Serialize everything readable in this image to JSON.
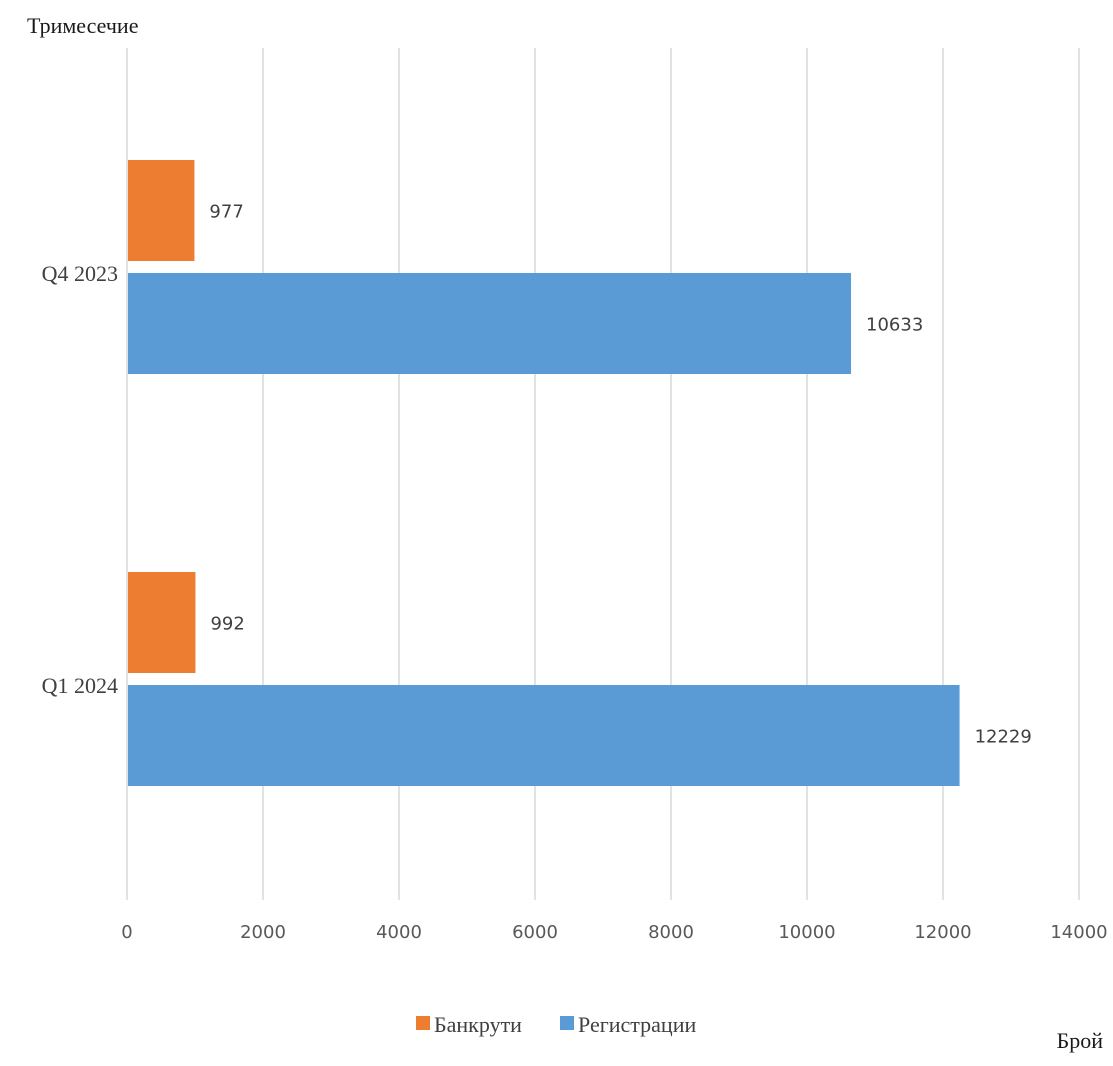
{
  "chart_data": {
    "type": "bar",
    "orientation": "horizontal",
    "y_axis_title": "Тримесечие",
    "x_axis_title": "Брой",
    "categories": [
      "Q4 2023",
      "Q1 2024"
    ],
    "series": [
      {
        "name": "Банкрути",
        "color": "#ed7d31",
        "values": [
          977,
          992
        ]
      },
      {
        "name": "Регистрации",
        "color": "#5b9bd5",
        "values": [
          10633,
          12229
        ]
      }
    ],
    "xlim": [
      0,
      14000
    ],
    "ticks": [
      0,
      2000,
      4000,
      6000,
      8000,
      10000,
      12000,
      14000
    ],
    "grid": true,
    "legend_position": "bottom"
  }
}
